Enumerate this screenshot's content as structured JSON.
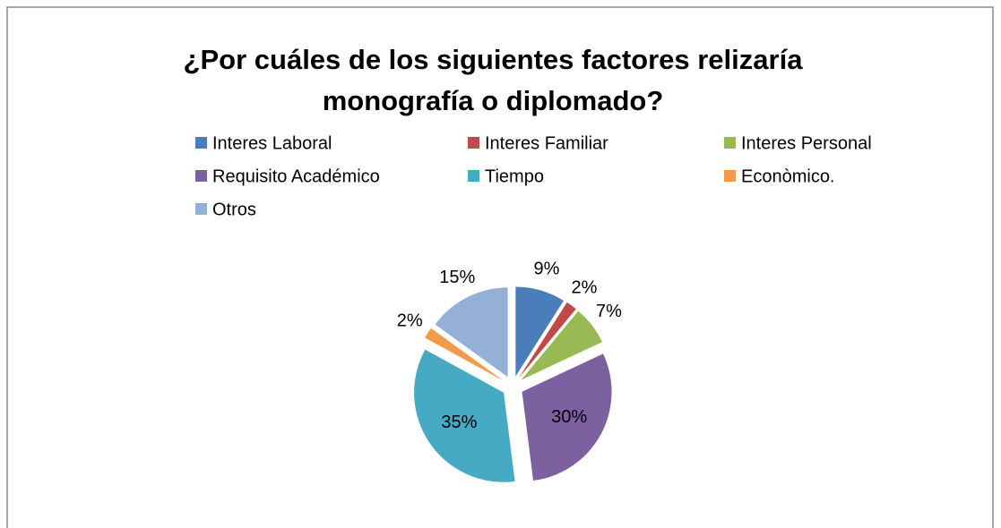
{
  "chart_data": {
    "type": "pie",
    "title": "¿Por cuáles de los siguientes factores relizaría monografía o diplomado?",
    "categories": [
      "Interes Laboral",
      "Interes Familiar",
      "Interes Personal",
      "Requisito Académico",
      "Tiempo",
      "Econòmico.",
      "Otros"
    ],
    "values": [
      9,
      2,
      7,
      30,
      35,
      2,
      15
    ],
    "value_labels": [
      "9%",
      "2%",
      "7%",
      "30%",
      "35%",
      "2%",
      "15%"
    ],
    "colors": [
      "#4a7ebb",
      "#be4b48",
      "#98b954",
      "#7d60a0",
      "#46aac5",
      "#f39a4a",
      "#95b0d6"
    ],
    "legend": "top"
  }
}
